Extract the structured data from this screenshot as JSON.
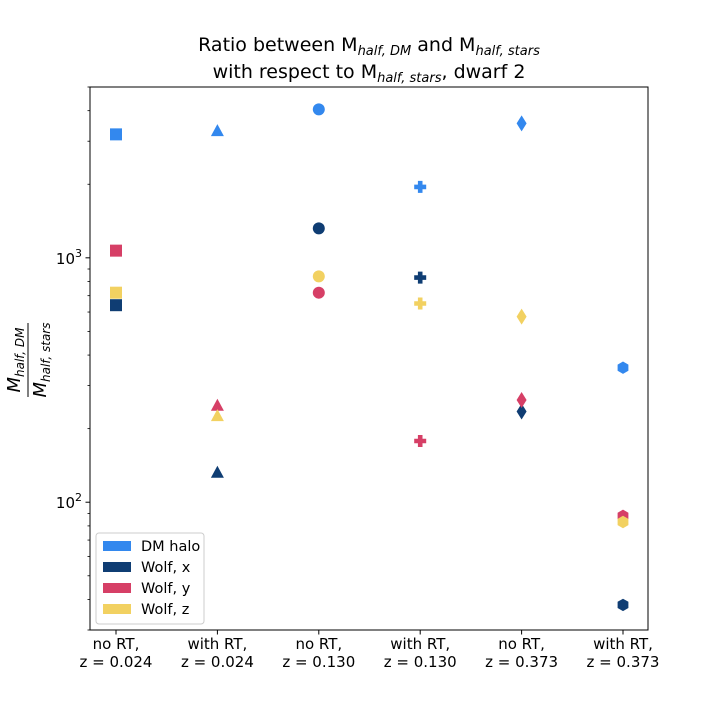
{
  "chart_data": {
    "type": "scatter",
    "title": {
      "line1": {
        "base1": "Ratio between M",
        "sub1": "half, DM",
        "mid": " and M",
        "sub2": "half, stars"
      },
      "line2": {
        "base1": "with respect to M",
        "sub1": "half, stars",
        "tail": ", dwarf 2"
      }
    },
    "ylabel": {
      "num": "M",
      "num_sub": "half, DM",
      "den": "M",
      "den_sub": "half, stars"
    },
    "yscale": "log",
    "ylim": [
      30,
      5000
    ],
    "y_major_ticks": [
      {
        "value": 100,
        "base": "10",
        "exp": "2"
      },
      {
        "value": 1000,
        "base": "10",
        "exp": "3"
      }
    ],
    "categories": [
      [
        "no RT,",
        "z = 0.024"
      ],
      [
        "with RT,",
        "z = 0.024"
      ],
      [
        "no RT,",
        "z = 0.130"
      ],
      [
        "with RT,",
        "z = 0.130"
      ],
      [
        "no RT,",
        "z = 0.373"
      ],
      [
        "with RT,",
        "z = 0.373"
      ]
    ],
    "markers": [
      "square",
      "triangle",
      "circle",
      "plus",
      "diamond",
      "hexagon"
    ],
    "series": [
      {
        "name": "DM halo",
        "color": "#3388ee",
        "values": [
          3200,
          3300,
          4050,
          1950,
          3550,
          355
        ]
      },
      {
        "name": "Wolf, x",
        "color": "#0f3d73",
        "values": [
          640,
          132,
          1320,
          830,
          235,
          38
        ]
      },
      {
        "name": "Wolf, y",
        "color": "#d63f66",
        "values": [
          1070,
          248,
          720,
          178,
          262,
          88
        ]
      },
      {
        "name": "Wolf, z",
        "color": "#f2d161",
        "values": [
          720,
          225,
          840,
          650,
          575,
          83
        ]
      }
    ],
    "legend_placement": "lower-left",
    "grid": false
  }
}
